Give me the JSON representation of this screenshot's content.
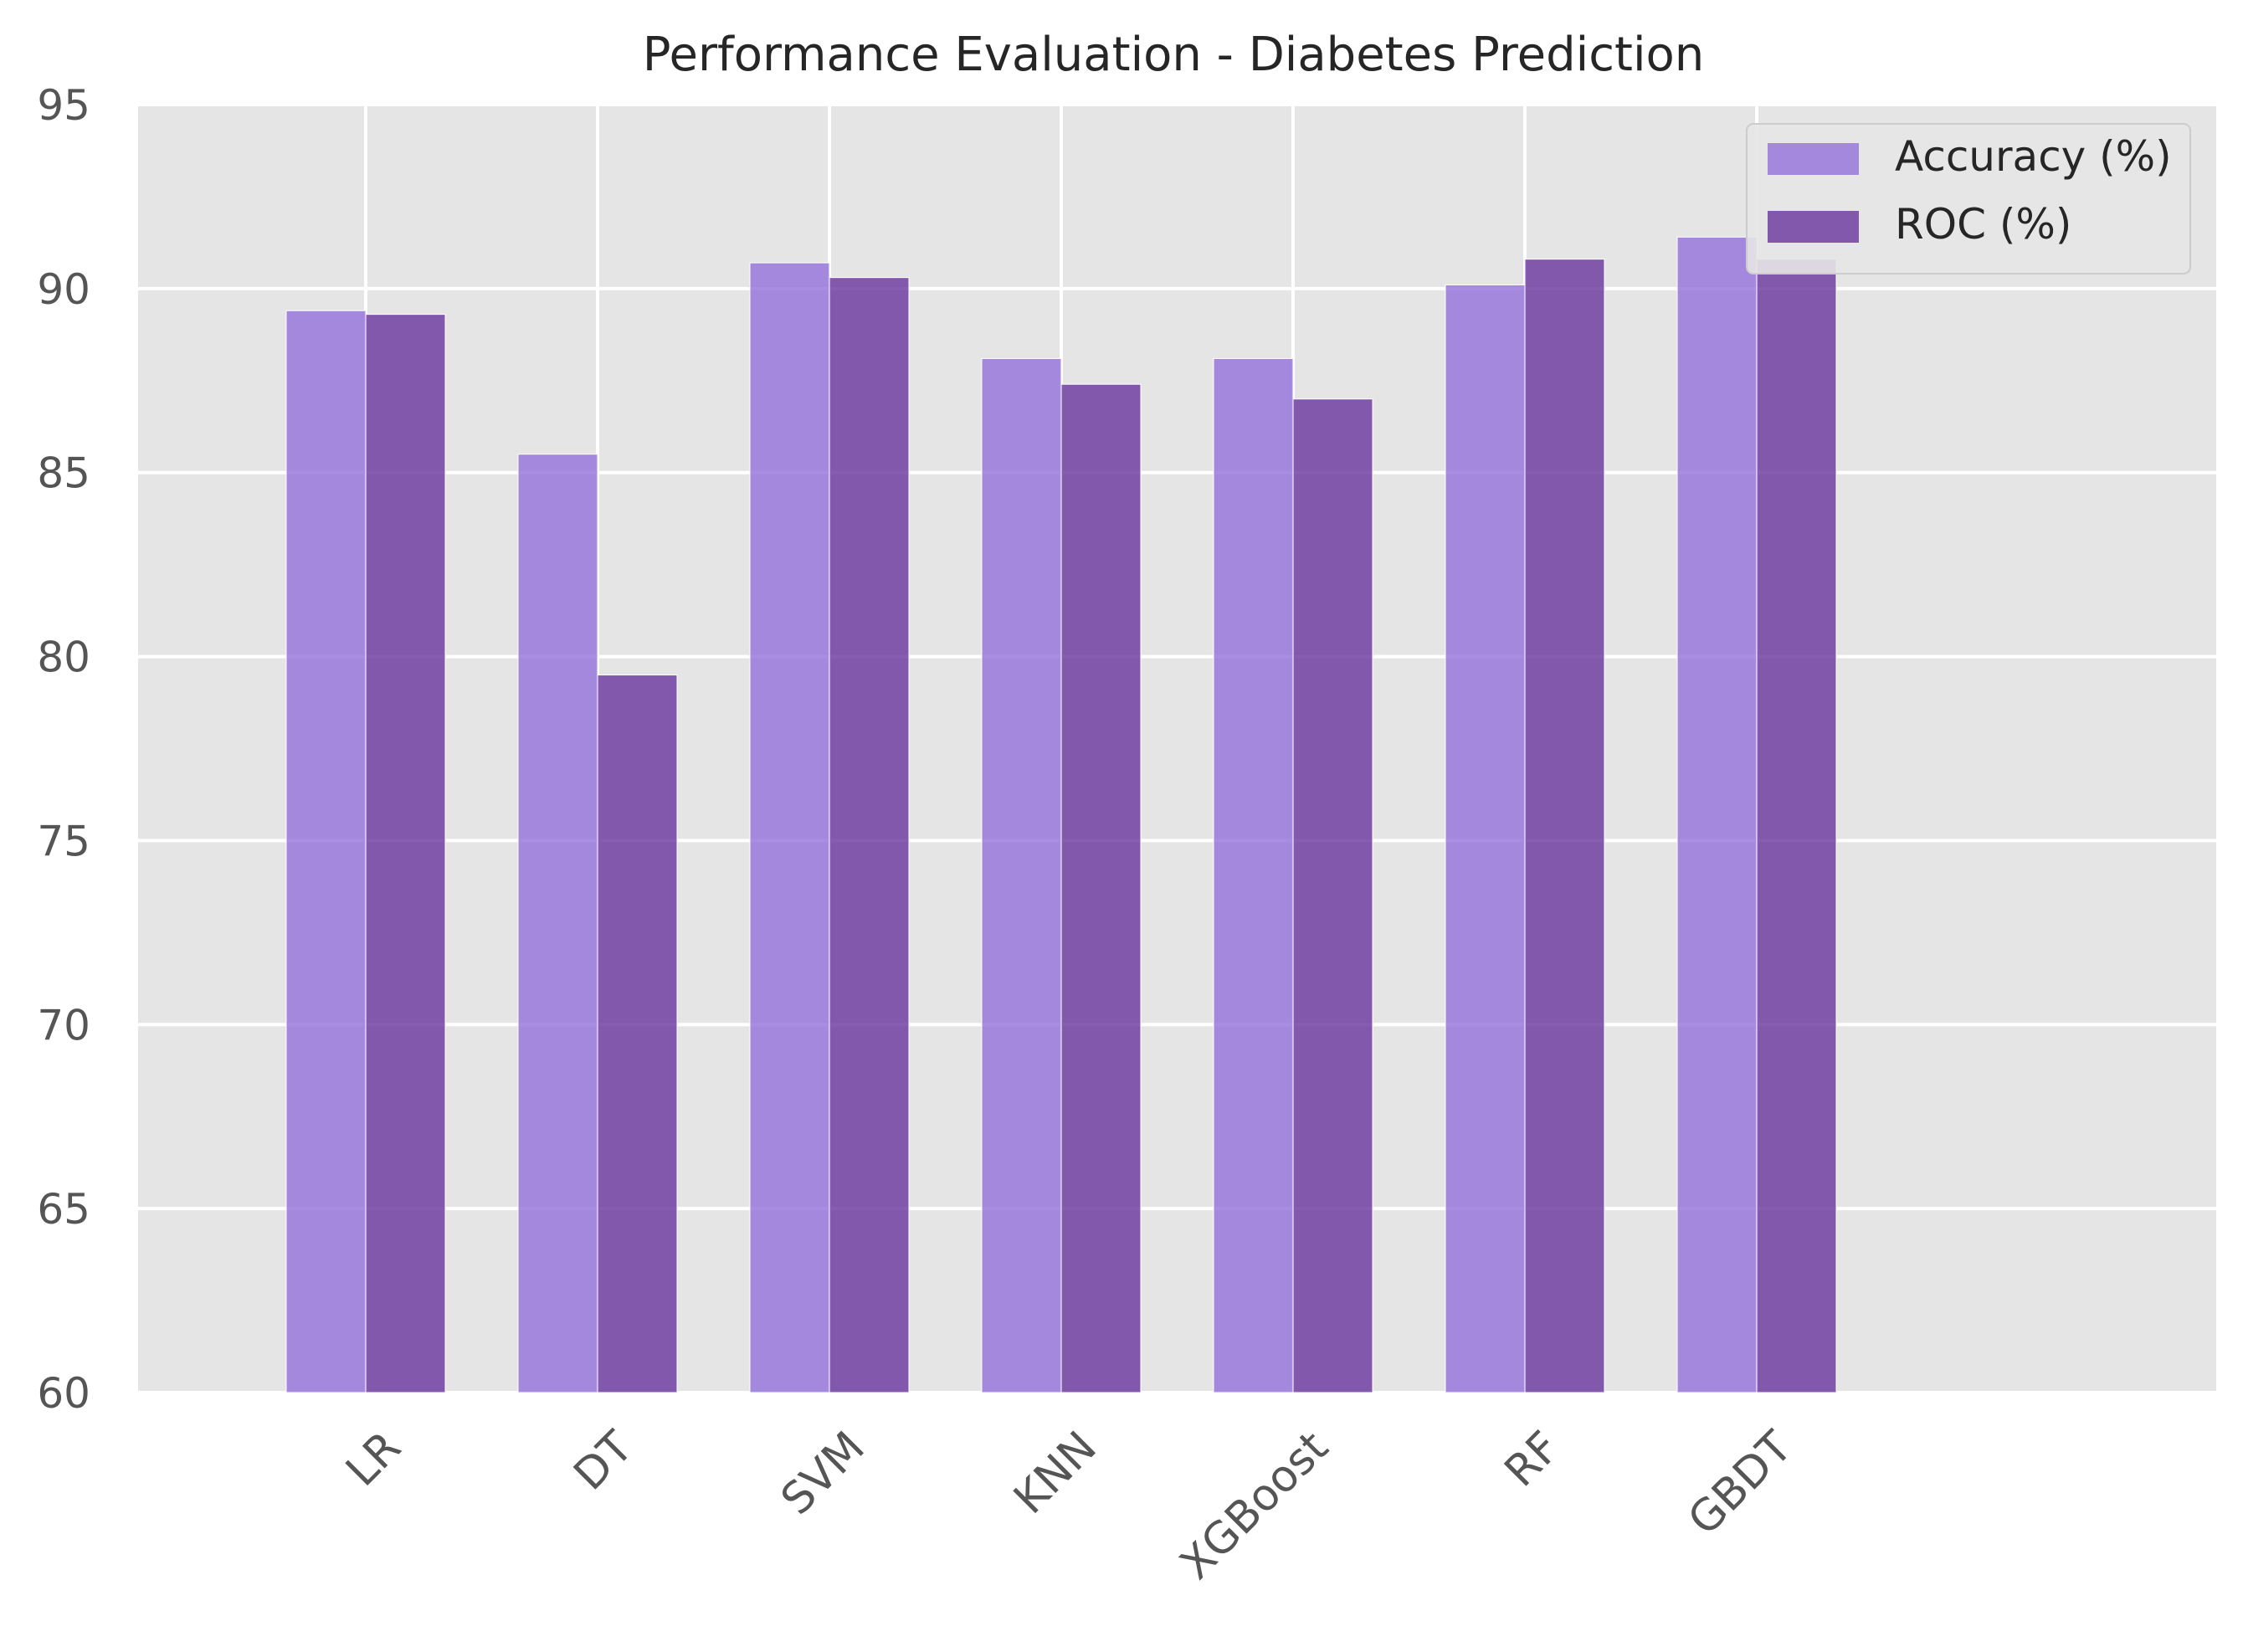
{
  "chart_data": {
    "type": "bar",
    "title": "Performance Evaluation - Diabetes Prediction",
    "xlabel": "",
    "ylabel": "",
    "categories": [
      "LR",
      "DT",
      "SVM",
      "KNN",
      "XGBoost",
      "RF",
      "GBDT"
    ],
    "series": [
      {
        "name": "Accuracy (%)",
        "values": [
          89.4,
          85.5,
          90.7,
          88.1,
          88.1,
          90.1,
          91.4
        ],
        "color": "#9370DB"
      },
      {
        "name": "ROC (%)",
        "values": [
          89.3,
          79.5,
          90.3,
          87.4,
          87.0,
          90.8,
          90.8
        ],
        "color": "#68349E"
      }
    ],
    "ylim": [
      60,
      95
    ],
    "yticks": [
      60,
      65,
      70,
      75,
      80,
      85,
      90,
      95
    ],
    "grid": true,
    "legend_position": "top-right",
    "background_color": "#E5E5E5",
    "grid_color": "#FFFFFF"
  }
}
